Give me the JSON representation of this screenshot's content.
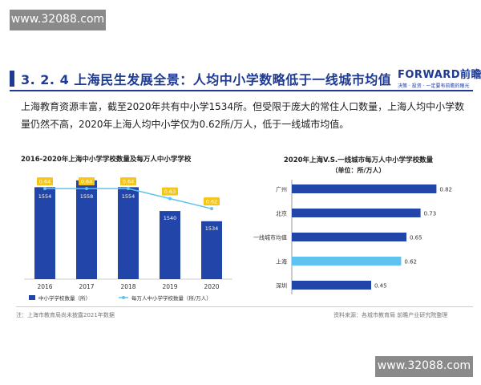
{
  "watermark": {
    "top_left": "www.32088.com",
    "bottom_right": "www.32088.com"
  },
  "header": {
    "title": "3. 2. 4  上海民生发展全景：人均中小学数略低于一线城市均值",
    "logo_main": "FORWARD前瞻",
    "logo_sub": "决策 · 投资 · 一定要有前瞻的眼光"
  },
  "intro": "上海教育资源丰富，截至2020年共有中小学1534所。但受限于庞大的常住人口数量，上海人均中小学数量仍然不高，2020年上海人均中小学仅为0.62所/万人，低于一线城市均值。",
  "colors": {
    "dark_blue": "#2145a8",
    "light_blue": "#5ec3f0",
    "label_yellow": "#f5c518",
    "highlight_blue": "#5ec3f0"
  },
  "chart_data": [
    {
      "type": "bar",
      "title": "2016-2020年上海中小学学校数量及每万人中小学学校",
      "categories": [
        "2016",
        "2017",
        "2018",
        "2019",
        "2020"
      ],
      "series": [
        {
          "name": "中小学学校数量（所）",
          "type": "bar",
          "values": [
            1554,
            1558,
            1554,
            1540,
            1534
          ]
        },
        {
          "name": "每万人中小学学校数量（所/万人）",
          "type": "line",
          "values": [
            0.64,
            0.64,
            0.64,
            0.63,
            0.62
          ]
        }
      ],
      "bar_labels": [
        "1554",
        "1558",
        "1554",
        "1540",
        "1534"
      ],
      "line_labels": [
        "0.64",
        "0.64",
        "0.64",
        "0.63",
        "0.62"
      ],
      "ylim_bar": [
        1500,
        1565
      ],
      "ylim_line": [
        0.55,
        0.66
      ],
      "legend_position": "bottom"
    },
    {
      "type": "bar",
      "orientation": "horizontal",
      "title": "2020年上海V.S.一线城市每万人中小学学校数量",
      "subtitle": "（单位：所/万人）",
      "categories": [
        "广州",
        "北京",
        "一线城市均值",
        "上海",
        "深圳"
      ],
      "values": [
        0.82,
        0.73,
        0.65,
        0.62,
        0.45
      ],
      "value_labels": [
        "0.82",
        "0.73",
        "0.65",
        "0.62",
        "0.45"
      ],
      "highlight": "上海",
      "xlim": [
        0,
        1.0
      ]
    }
  ],
  "footer": {
    "note": "注：上海市教育局尚未披露2021年数据",
    "source": "资料来源：各城市教育局  前瞻产业研究院整理"
  }
}
